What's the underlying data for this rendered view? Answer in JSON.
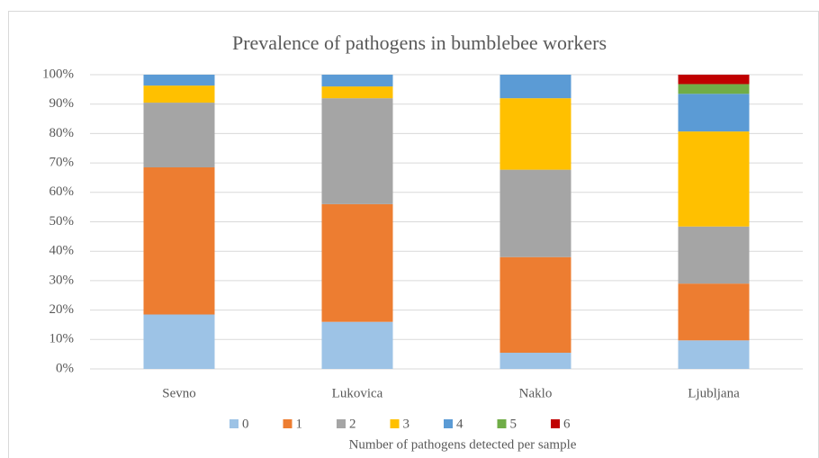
{
  "chart_data": {
    "type": "stacked_bar_percent",
    "title": "Prevalence of pathogens in bumblebee workers",
    "x_axis_title": "Number of pathogens detected per sample",
    "categories": [
      "Sevno",
      "Lukovica",
      "Naklo",
      "Ljubljana"
    ],
    "series": [
      {
        "name": "0",
        "color": "#9dc3e6",
        "values": [
          18.5,
          16,
          5.5,
          9.7
        ]
      },
      {
        "name": "1",
        "color": "#ed7d31",
        "values": [
          50,
          40,
          32.5,
          19.3
        ]
      },
      {
        "name": "2",
        "color": "#a5a5a5",
        "values": [
          22,
          36,
          29.7,
          19.4
        ]
      },
      {
        "name": "3",
        "color": "#ffc000",
        "values": [
          5.8,
          4,
          24.3,
          32.3
        ]
      },
      {
        "name": "4",
        "color": "#5b9bd5",
        "values": [
          3.7,
          4,
          8.0,
          12.8
        ]
      },
      {
        "name": "5",
        "color": "#70ad47",
        "values": [
          0,
          0,
          0,
          3.3
        ]
      },
      {
        "name": "6",
        "color": "#c00000",
        "values": [
          0,
          0,
          0,
          3.2
        ]
      }
    ],
    "ylim": [
      0,
      100
    ],
    "yticks": [
      {
        "value": 0,
        "label": "0%"
      },
      {
        "value": 10,
        "label": "10%"
      },
      {
        "value": 20,
        "label": "20%"
      },
      {
        "value": 30,
        "label": "30%"
      },
      {
        "value": 40,
        "label": "40%"
      },
      {
        "value": 50,
        "label": "50%"
      },
      {
        "value": 60,
        "label": "60%"
      },
      {
        "value": 70,
        "label": "70%"
      },
      {
        "value": 80,
        "label": "80%"
      },
      {
        "value": 90,
        "label": "90%"
      },
      {
        "value": 100,
        "label": "100%"
      }
    ],
    "grid": true,
    "legend": "bottom"
  }
}
